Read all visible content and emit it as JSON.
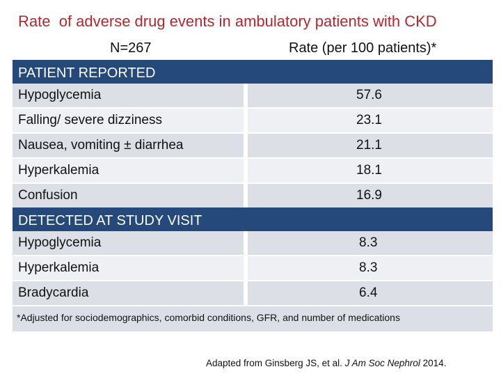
{
  "title": "Rate  of adverse drug events in ambulatory patients with CKD",
  "header": {
    "n_label": "N=267",
    "rate_label": "Rate (per 100 patients)*"
  },
  "sections": [
    {
      "heading": "PATIENT REPORTED",
      "rows": [
        {
          "event": "Hypoglycemia",
          "rate": "57.6"
        },
        {
          "event": "Falling/ severe dizziness",
          "rate": "23.1"
        },
        {
          "event": "Nausea, vomiting ± diarrhea",
          "rate": "21.1"
        },
        {
          "event": "Hyperkalemia",
          "rate": "18.1"
        },
        {
          "event": "Confusion",
          "rate": "16.9"
        }
      ]
    },
    {
      "heading": "DETECTED AT STUDY VISIT",
      "rows": [
        {
          "event": "Hypoglycemia",
          "rate": "8.3"
        },
        {
          "event": "Hyperkalemia",
          "rate": "8.3"
        },
        {
          "event": "Bradycardia",
          "rate": "6.4"
        }
      ]
    }
  ],
  "footnote": "*Adjusted for sociodemographics, comorbid conditions, GFR, and number of medications",
  "citation": {
    "prefix": "Adapted from Ginsberg JS, et al. ",
    "journal": "J Am Soc Nephrol",
    "suffix": " 2014."
  },
  "colors": {
    "title": "#b3282d",
    "section_bar": "#24497a",
    "row_dark": "#dce0e6",
    "row_light": "#eef0f3"
  }
}
